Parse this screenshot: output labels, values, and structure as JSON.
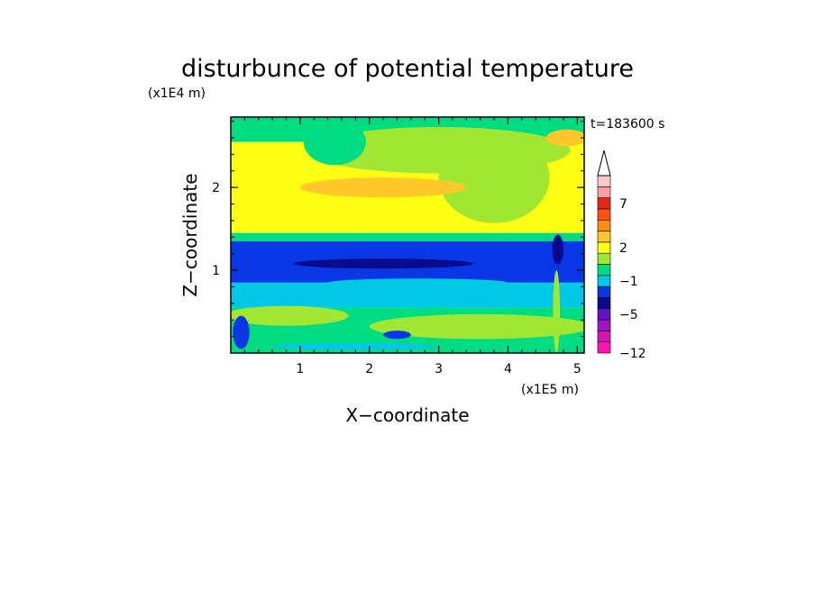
{
  "chart_data": {
    "type": "heatmap",
    "title": "disturbunce of potential temperature",
    "time_label": "t=183600 s",
    "xlabel": "X−coordinate",
    "ylabel": "Z−coordinate",
    "x_unit": "(x1E5 m)",
    "y_unit": "(x1E4 m)",
    "xlim": [
      0,
      5.1
    ],
    "ylim": [
      0,
      2.85
    ],
    "x_ticks": [
      "1",
      "2",
      "3",
      "4",
      "5"
    ],
    "y_ticks": [
      "1",
      "2"
    ],
    "x_tick_values": [
      1,
      2,
      3,
      4,
      5
    ],
    "y_tick_values": [
      1,
      2
    ],
    "colorbar": {
      "levels": [
        {
          "color": "#ff14b4"
        },
        {
          "color": "#d214b4"
        },
        {
          "color": "#a014c8"
        },
        {
          "color": "#6414c8"
        },
        {
          "color": "#0a0a8c"
        },
        {
          "color": "#0a37e6"
        },
        {
          "color": "#00c8e6"
        },
        {
          "color": "#00dc82"
        },
        {
          "color": "#a0e632"
        },
        {
          "color": "#ffff14"
        },
        {
          "color": "#ffc828"
        },
        {
          "color": "#ff8c14"
        },
        {
          "color": "#ff5014"
        },
        {
          "color": "#e62814"
        },
        {
          "color": "#ffa0a0"
        },
        {
          "color": "#ffc8c8"
        }
      ],
      "labels": [
        "7",
        "2",
        "−1",
        "−5",
        "−12"
      ],
      "label_values": [
        7,
        2,
        -1,
        -5,
        -12
      ]
    },
    "bands": [
      {
        "z": [
          2.55,
          2.85
        ],
        "color": "#00dc82"
      },
      {
        "z": [
          1.45,
          2.55
        ],
        "color": "#ffff14"
      },
      {
        "z": [
          1.35,
          1.45
        ],
        "color": "#00dc82"
      },
      {
        "z": [
          0.85,
          1.35
        ],
        "color": "#0a37e6"
      },
      {
        "z": [
          0.55,
          0.85
        ],
        "color": "#00c8e6"
      },
      {
        "z": [
          0.0,
          0.55
        ],
        "color": "#00dc82"
      }
    ],
    "features": [
      {
        "x": 3.0,
        "z": 2.45,
        "rx": 1.9,
        "rz": 0.28,
        "color": "#a0e632"
      },
      {
        "x": 3.8,
        "z": 2.12,
        "rx": 0.8,
        "rz": 0.55,
        "color": "#a0e632"
      },
      {
        "x": 2.2,
        "z": 2.0,
        "rx": 1.2,
        "rz": 0.12,
        "color": "#ffc828"
      },
      {
        "x": 4.85,
        "z": 2.6,
        "rx": 0.3,
        "rz": 0.1,
        "color": "#ffc828"
      },
      {
        "x": 1.5,
        "z": 2.55,
        "rx": 0.45,
        "rz": 0.28,
        "color": "#00dc82"
      },
      {
        "x": 2.2,
        "z": 1.08,
        "rx": 1.3,
        "rz": 0.06,
        "color": "#0a0a8c"
      },
      {
        "x": 4.72,
        "z": 1.25,
        "rx": 0.08,
        "rz": 0.18,
        "color": "#0a0a8c"
      },
      {
        "x": 2.7,
        "z": 0.85,
        "rx": 1.3,
        "rz": 0.05,
        "color": "#00c8e6"
      },
      {
        "x": 0.8,
        "z": 0.45,
        "rx": 0.9,
        "rz": 0.12,
        "color": "#a0e632"
      },
      {
        "x": 3.6,
        "z": 0.32,
        "rx": 1.6,
        "rz": 0.15,
        "color": "#a0e632"
      },
      {
        "x": 0.15,
        "z": 0.25,
        "rx": 0.12,
        "rz": 0.2,
        "color": "#0a37e6"
      },
      {
        "x": 2.4,
        "z": 0.22,
        "rx": 0.2,
        "rz": 0.05,
        "color": "#0a37e6"
      },
      {
        "x": 1.8,
        "z": 0.08,
        "rx": 1.2,
        "rz": 0.04,
        "color": "#00c8e6"
      },
      {
        "x": 4.7,
        "z": 0.5,
        "rx": 0.05,
        "rz": 0.5,
        "color": "#a0e632"
      }
    ]
  }
}
